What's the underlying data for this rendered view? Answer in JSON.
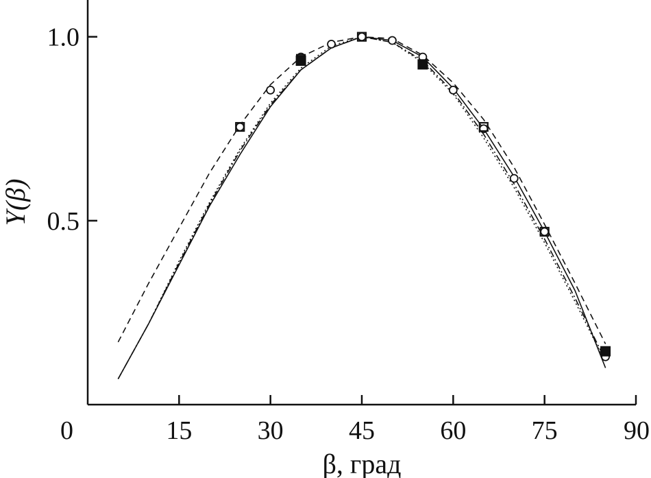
{
  "chart_data": {
    "type": "line",
    "title": "",
    "xlabel": "β, град",
    "ylabel": "Y(β)",
    "xlim": [
      0,
      90
    ],
    "ylim": [
      0.0,
      1.1
    ],
    "x_ticks": [
      0,
      15,
      30,
      45,
      60,
      75,
      90
    ],
    "x_tick_labels": [
      "0",
      "15",
      "30",
      "45",
      "60",
      "75",
      "90"
    ],
    "y_ticks": [
      0.5,
      1.0
    ],
    "y_tick_labels": [
      "0.5",
      "1.0"
    ],
    "grid": false,
    "legend": "none",
    "series": [
      {
        "style": "solid",
        "points": [
          [
            5,
            0.07
          ],
          [
            10,
            0.22
          ],
          [
            15,
            0.38
          ],
          [
            20,
            0.54
          ],
          [
            25,
            0.68
          ],
          [
            30,
            0.81
          ],
          [
            35,
            0.91
          ],
          [
            40,
            0.97
          ],
          [
            45,
            1.0
          ],
          [
            50,
            0.99
          ],
          [
            55,
            0.945
          ],
          [
            60,
            0.86
          ],
          [
            65,
            0.75
          ],
          [
            70,
            0.62
          ],
          [
            75,
            0.47
          ],
          [
            80,
            0.31
          ],
          [
            85,
            0.1
          ]
        ]
      },
      {
        "style": "dashed",
        "points": [
          [
            5,
            0.17
          ],
          [
            10,
            0.33
          ],
          [
            15,
            0.48
          ],
          [
            20,
            0.63
          ],
          [
            25,
            0.76
          ],
          [
            30,
            0.87
          ],
          [
            35,
            0.945
          ],
          [
            40,
            0.985
          ],
          [
            45,
            1.0
          ],
          [
            50,
            0.995
          ],
          [
            55,
            0.95
          ],
          [
            60,
            0.875
          ],
          [
            65,
            0.775
          ],
          [
            70,
            0.645
          ],
          [
            75,
            0.49
          ],
          [
            80,
            0.33
          ],
          [
            85,
            0.165
          ]
        ]
      },
      {
        "style": "dotted",
        "points": [
          [
            5,
            0.07
          ],
          [
            10,
            0.22
          ],
          [
            15,
            0.39
          ],
          [
            20,
            0.55
          ],
          [
            25,
            0.695
          ],
          [
            30,
            0.82
          ],
          [
            35,
            0.915
          ],
          [
            40,
            0.975
          ],
          [
            45,
            1.0
          ],
          [
            50,
            0.985
          ],
          [
            55,
            0.93
          ],
          [
            60,
            0.845
          ],
          [
            65,
            0.725
          ],
          [
            70,
            0.59
          ],
          [
            75,
            0.44
          ],
          [
            80,
            0.28
          ],
          [
            85,
            0.115
          ]
        ]
      },
      {
        "style": "dash-dot",
        "points": [
          [
            5,
            0.07
          ],
          [
            10,
            0.22
          ],
          [
            15,
            0.385
          ],
          [
            20,
            0.545
          ],
          [
            25,
            0.69
          ],
          [
            30,
            0.815
          ],
          [
            35,
            0.91
          ],
          [
            40,
            0.97
          ],
          [
            45,
            1.0
          ],
          [
            50,
            0.985
          ],
          [
            55,
            0.935
          ],
          [
            60,
            0.85
          ],
          [
            65,
            0.735
          ],
          [
            70,
            0.6
          ],
          [
            75,
            0.45
          ],
          [
            80,
            0.29
          ],
          [
            85,
            0.12
          ]
        ]
      }
    ],
    "markers": [
      {
        "shape": "open-circle",
        "points": [
          [
            25,
            0.755
          ],
          [
            30,
            0.855
          ],
          [
            35,
            0.945
          ],
          [
            40,
            0.98
          ],
          [
            45,
            1.0
          ],
          [
            50,
            0.99
          ],
          [
            55,
            0.945
          ],
          [
            60,
            0.855
          ],
          [
            65,
            0.75
          ],
          [
            70,
            0.615
          ],
          [
            75,
            0.47
          ],
          [
            85,
            0.13
          ]
        ]
      },
      {
        "shape": "open-square",
        "points": [
          [
            25,
            0.755
          ],
          [
            35,
            0.94
          ],
          [
            45,
            1.0
          ],
          [
            65,
            0.755
          ],
          [
            75,
            0.47
          ]
        ]
      },
      {
        "shape": "filled-square",
        "points": [
          [
            35,
            0.935
          ],
          [
            55,
            0.925
          ],
          [
            85,
            0.145
          ]
        ]
      }
    ]
  }
}
